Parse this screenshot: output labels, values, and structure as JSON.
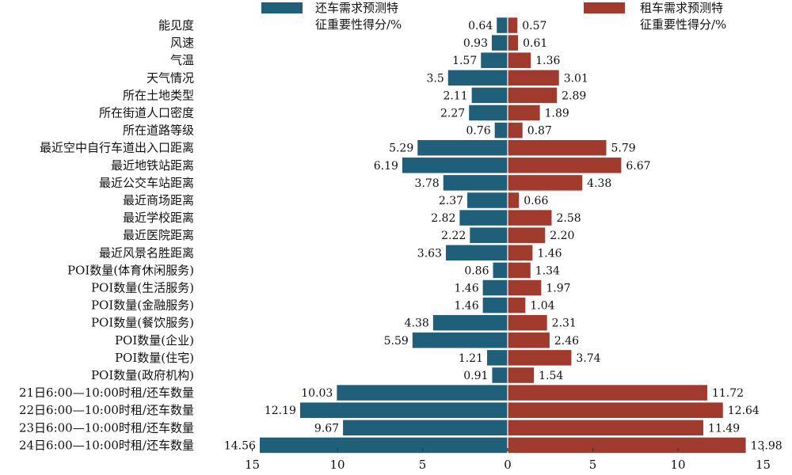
{
  "chart_data": {
    "type": "bar",
    "orientation": "horizontal-diverging",
    "categories": [
      "能见度",
      "风速",
      "气温",
      "天气情况",
      "所在土地类型",
      "所在街道人口密度",
      "所在道路等级",
      "最近空中自行车道出入口距离",
      "最近地铁站距离",
      "最近公交车站距离",
      "最近商场距离",
      "最近学校距离",
      "最近医院距离",
      "最近风景名胜距离",
      "POI数量(体育休闲服务)",
      "POI数量(生活服务)",
      "POI数量(金融服务)",
      "POI数量(餐饮服务)",
      "POI数量(企业)",
      "POI数量(住宅)",
      "POI数量(政府机构)",
      "21日6:00—10:00时租/还车数量",
      "22日6:00—10:00时租/还车数量",
      "23日6:00—10:00时租/还车数量",
      "24日6:00—10:00时租/还车数量"
    ],
    "series": [
      {
        "name": "还车需求预测特征重要性得分/%",
        "legend_lines": [
          "还车需求预测特",
          "征重要性得分/%"
        ],
        "side": "left",
        "color": "#1f5f7a",
        "values": [
          0.64,
          0.93,
          1.57,
          3.5,
          2.11,
          2.27,
          0.76,
          5.29,
          6.19,
          3.78,
          2.37,
          2.82,
          2.22,
          3.63,
          0.86,
          1.46,
          1.46,
          4.38,
          5.59,
          1.21,
          0.91,
          10.03,
          12.19,
          9.67,
          14.56
        ],
        "labels": [
          "0.64",
          "0.93",
          "1.57",
          "3.5",
          "2.11",
          "2.27",
          "0.76",
          "5.29",
          "6.19",
          "3.78",
          "2.37",
          "2.82",
          "2.22",
          "3.63",
          "0.86",
          "1.46",
          "1.46",
          "4.38",
          "5.59",
          "1.21",
          "0.91",
          "10.03",
          "12.19",
          "9.67",
          "14.56"
        ]
      },
      {
        "name": "租车需求预测特征重要性得分/%",
        "legend_lines": [
          "租车需求预测特",
          "征重要性得分/%"
        ],
        "side": "right",
        "color": "#a03a2c",
        "values": [
          0.57,
          0.61,
          1.36,
          3.01,
          2.89,
          1.89,
          0.87,
          5.79,
          6.67,
          4.38,
          0.66,
          2.58,
          2.2,
          1.46,
          1.34,
          1.97,
          1.04,
          2.31,
          2.46,
          3.74,
          1.54,
          11.72,
          12.64,
          11.49,
          13.98
        ],
        "labels": [
          "0.57",
          "0.61",
          "1.36",
          "3.01",
          "2.89",
          "1.89",
          "0.87",
          "5.79",
          "6.67",
          "4.38",
          "0.66",
          "2.58",
          "2.20",
          "1.46",
          "1.34",
          "1.97",
          "1.04",
          "2.31",
          "2.46",
          "3.74",
          "1.54",
          "11.72",
          "12.64",
          "11.49",
          "13.98"
        ]
      }
    ],
    "xlim": [
      -15,
      15
    ],
    "xticks": [
      -15,
      -10,
      -5,
      0,
      5,
      10,
      15
    ],
    "xtick_labels": [
      "15",
      "10",
      "5",
      "0",
      "5",
      "10",
      "15"
    ],
    "grid": false,
    "legend_placement": "top"
  }
}
